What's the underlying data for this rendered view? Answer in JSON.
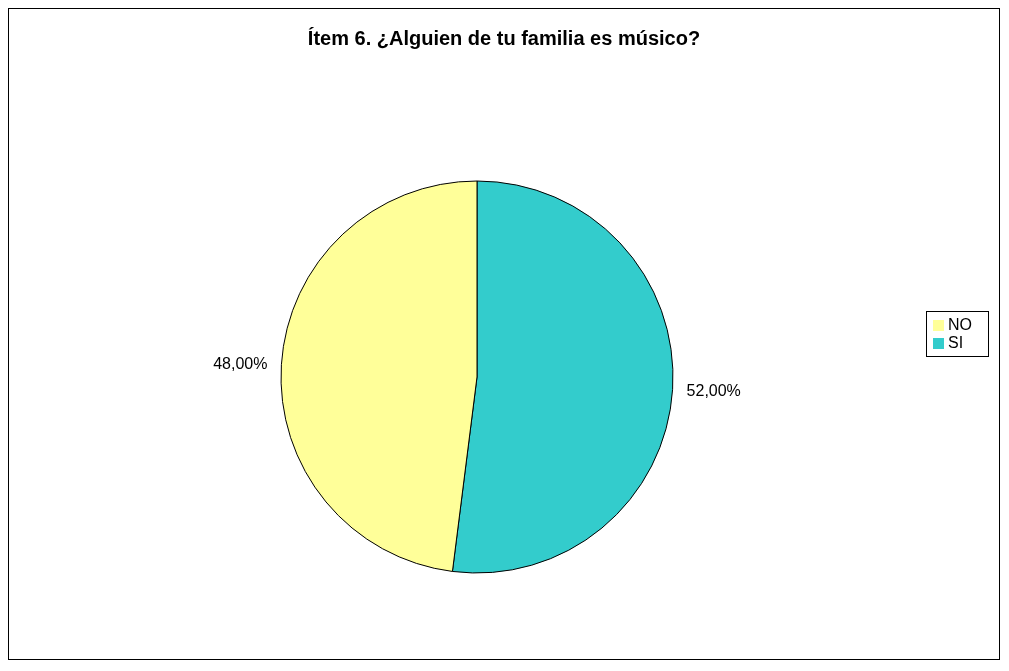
{
  "chart_data": {
    "type": "pie",
    "title": "Ítem 6. ¿Alguien de tu familia es músico?",
    "categories": [
      "SI",
      "NO"
    ],
    "values": [
      52,
      48
    ],
    "colors": [
      "#33cccc",
      "#ffff99"
    ],
    "value_labels": [
      "52,00%",
      "48,00%"
    ],
    "legend": "right"
  }
}
